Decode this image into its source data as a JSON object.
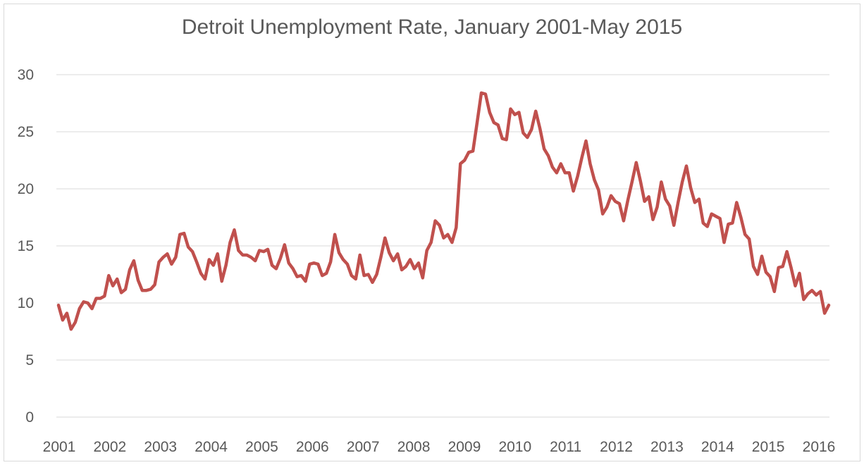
{
  "chart_data": {
    "type": "line",
    "title": "Detroit Unemployment Rate, January 2001-May 2015",
    "xlabel": "",
    "ylabel": "",
    "ylim": [
      0,
      30
    ],
    "y_ticks": [
      "0",
      "5",
      "10",
      "15",
      "20",
      "25",
      "30"
    ],
    "x_ticks": [
      "2001",
      "2002",
      "2003",
      "2004",
      "2005",
      "2006",
      "2007",
      "2008",
      "2009",
      "2010",
      "2011",
      "2012",
      "2013",
      "2014",
      "2015",
      "2016"
    ],
    "grid": true,
    "legend": "none",
    "line_color": "#c0504d",
    "series": [
      {
        "values": [
          9.8,
          8.5,
          9.1,
          7.7,
          8.3,
          9.5,
          10.1,
          10.0,
          9.5,
          10.4,
          10.4,
          10.6,
          12.4,
          11.5,
          12.1,
          10.9,
          11.2,
          12.9,
          13.7,
          12.0,
          11.1,
          11.1,
          11.2,
          11.6,
          13.6,
          14.0,
          14.3,
          13.4,
          14.0,
          16.0,
          16.1,
          14.9,
          14.5,
          13.6,
          12.6,
          12.1,
          13.8,
          13.3,
          14.3,
          11.9,
          13.3,
          15.3,
          16.4,
          14.6,
          14.2,
          14.2,
          14.0,
          13.7,
          14.6,
          14.5,
          14.7,
          13.3,
          13.0,
          13.9,
          15.1,
          13.5,
          13.0,
          12.3,
          12.4,
          11.9,
          13.4,
          13.5,
          13.4,
          12.4,
          12.6,
          13.6,
          16.0,
          14.4,
          13.8,
          13.4,
          12.4,
          12.1,
          14.2,
          12.4,
          12.5,
          11.8,
          12.5,
          14.0,
          15.7,
          14.4,
          13.7,
          14.3,
          12.9,
          13.2,
          13.8,
          13.0,
          13.5,
          12.2,
          14.6,
          15.3,
          17.2,
          16.8,
          15.7,
          16.0,
          15.3,
          16.6,
          22.2,
          22.5,
          23.2,
          23.3,
          25.8,
          28.4,
          28.3,
          26.7,
          25.8,
          25.6,
          24.4,
          24.3,
          27.0,
          26.5,
          26.7,
          24.9,
          24.5,
          25.2,
          26.8,
          25.3,
          23.5,
          22.9,
          21.9,
          21.4,
          22.2,
          21.4,
          21.4,
          19.8,
          21.1,
          22.7,
          24.2,
          22.2,
          20.8,
          19.9,
          17.8,
          18.4,
          19.4,
          18.9,
          18.7,
          17.2,
          19.0,
          20.6,
          22.3,
          20.7,
          18.9,
          19.3,
          17.3,
          18.4,
          20.6,
          19.1,
          18.5,
          16.8,
          18.8,
          20.6,
          22.0,
          20.1,
          18.8,
          19.1,
          17.0,
          16.7,
          17.8,
          17.6,
          17.4,
          15.3,
          16.9,
          17.0,
          18.8,
          17.5,
          16.0,
          15.6,
          13.2,
          12.5,
          14.1,
          12.7,
          12.3,
          11.0,
          13.1,
          13.2,
          14.5,
          13.1,
          11.5,
          12.6,
          10.3,
          10.8,
          11.1,
          10.7,
          11.0,
          9.1,
          9.8
        ]
      }
    ]
  }
}
